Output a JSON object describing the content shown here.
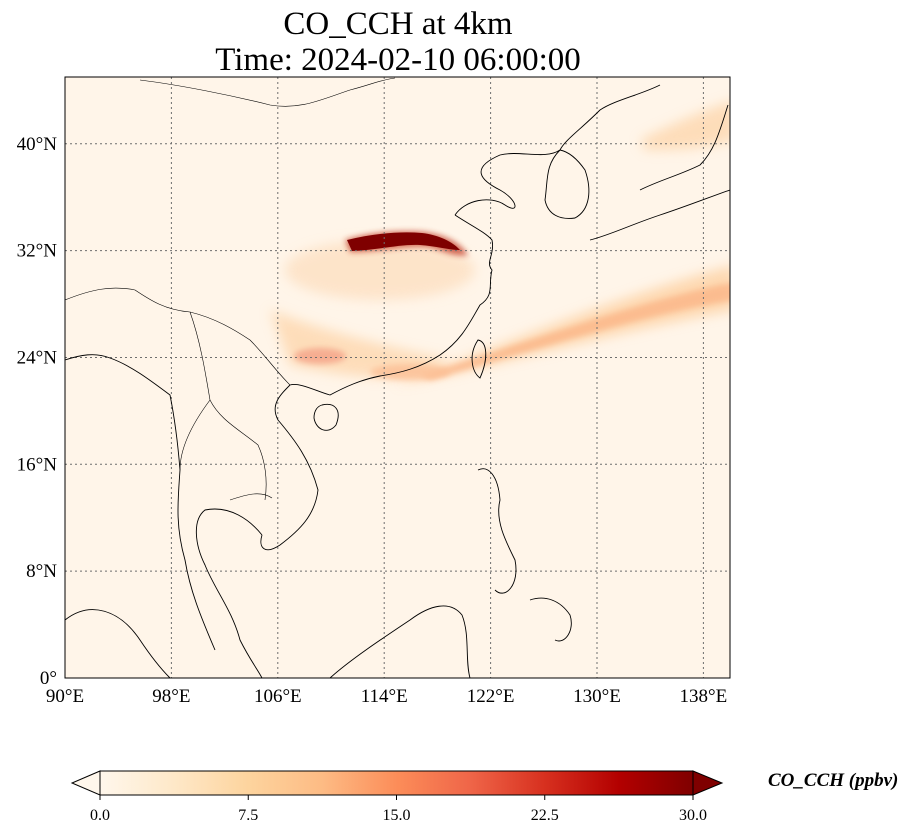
{
  "title_line1": "CO_CCH at 4km",
  "title_line2": "Time: 2024-02-10 06:00:00",
  "colorbar": {
    "label": "CO_CCH (ppbv)",
    "ticks": [
      "0.0",
      "7.5",
      "15.0",
      "22.5",
      "30.0"
    ],
    "min": 0,
    "max": 30,
    "extend": "both",
    "colormap": "OrRd",
    "colors": [
      "#fff7ec",
      "#fee8c8",
      "#fdd49e",
      "#fdbb84",
      "#fc8d59",
      "#ef6548",
      "#d7301f",
      "#b30000",
      "#7f0000"
    ]
  },
  "map": {
    "lon_range": [
      90,
      140
    ],
    "lat_range": [
      0,
      45
    ],
    "lon_ticks": [
      "90°E",
      "98°E",
      "106°E",
      "114°E",
      "122°E",
      "130°E",
      "138°E"
    ],
    "lat_ticks": [
      "0°",
      "8°N",
      "16°N",
      "24°N",
      "32°N",
      "40°N"
    ],
    "gridlines": "dotted",
    "coastlines": true,
    "borders": true,
    "plumes": [
      {
        "name": "central-china-plume",
        "level": 30
      },
      {
        "name": "south-china-plume",
        "level": 15
      },
      {
        "name": "pacific-band",
        "level": 11
      },
      {
        "name": "japan-plume",
        "level": 8
      }
    ]
  }
}
